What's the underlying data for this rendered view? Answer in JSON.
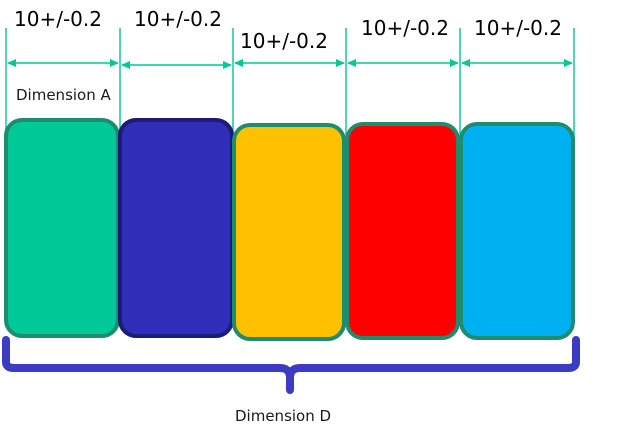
{
  "tolerances": [
    "10+/-0.2",
    "10+/-0.2",
    "10+/-0.2",
    "10+/-0.2",
    "10+/-0.2"
  ],
  "labels": {
    "dimension_a": "Dimension A",
    "dimension_d": "Dimension D"
  },
  "blocks": [
    {
      "name": "green-block",
      "fill": "#00c896",
      "stroke": "#1e8c6e"
    },
    {
      "name": "navy-block",
      "fill": "#2e2eb8",
      "stroke": "#1c1c78"
    },
    {
      "name": "yellow-block",
      "fill": "#ffc000",
      "stroke": "#1e8c6e"
    },
    {
      "name": "red-block",
      "fill": "#ff0000",
      "stroke": "#1e8c6e"
    },
    {
      "name": "cyan-block",
      "fill": "#00b0f0",
      "stroke": "#1e8c6e"
    }
  ],
  "colors": {
    "dimension_line": "#00c896",
    "brace": "#3b3bc4"
  }
}
